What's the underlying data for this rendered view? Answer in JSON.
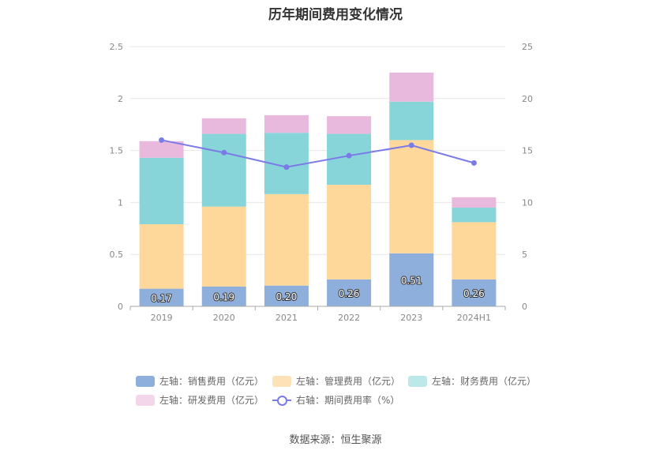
{
  "title": "历年期间费用变化情况",
  "source_text": "数据来源：恒生聚源",
  "chart_data": {
    "type": "bar",
    "stacked": true,
    "categories": [
      "2019",
      "2020",
      "2021",
      "2022",
      "2023",
      "2024H1"
    ],
    "left_axis": {
      "min": 0,
      "max": 2.5,
      "ticks": [
        "0",
        "0.5",
        "1",
        "1.5",
        "2",
        "2.5"
      ]
    },
    "right_axis": {
      "min": 0,
      "max": 25,
      "ticks": [
        "0",
        "5",
        "10",
        "15",
        "20",
        "25"
      ]
    },
    "grid": true,
    "legend_position": "bottom",
    "series": [
      {
        "name": "左轴：销售费用（亿元）",
        "type": "bar",
        "axis": "left",
        "color": "#8eaedb",
        "values": [
          0.17,
          0.19,
          0.2,
          0.26,
          0.51,
          0.26
        ],
        "labels": [
          "0.17",
          "0.19",
          "0.20",
          "0.26",
          "0.51",
          "0.26"
        ]
      },
      {
        "name": "左轴：管理费用（亿元）",
        "type": "bar",
        "axis": "left",
        "color": "#fed89b",
        "values": [
          0.62,
          0.77,
          0.88,
          0.91,
          1.09,
          0.55
        ]
      },
      {
        "name": "左轴：财务费用（亿元）",
        "type": "bar",
        "axis": "left",
        "color": "#87d5d8",
        "values": [
          0.64,
          0.7,
          0.59,
          0.49,
          0.37,
          0.14
        ]
      },
      {
        "name": "左轴：研发费用（亿元）",
        "type": "bar",
        "axis": "left",
        "color": "#e8b9dc",
        "values": [
          0.16,
          0.15,
          0.17,
          0.17,
          0.28,
          0.1
        ]
      },
      {
        "name": "右轴：期间费用率（%）",
        "type": "line",
        "axis": "right",
        "color": "#7b7be8",
        "values": [
          16.0,
          14.8,
          13.4,
          14.5,
          15.5,
          13.8
        ]
      }
    ]
  },
  "legend": {
    "items": [
      {
        "label": "左轴：销售费用（亿元）",
        "color": "#8eaedb"
      },
      {
        "label": "左轴：管理费用（亿元）",
        "color": "#fde2b8"
      },
      {
        "label": "左轴：财务费用（亿元）",
        "color": "#bde8e9"
      },
      {
        "label": "左轴：研发费用（亿元）",
        "color": "#f3d6ea"
      },
      {
        "label": "右轴：期间费用率（%）",
        "color": "#7b7be8"
      }
    ]
  }
}
